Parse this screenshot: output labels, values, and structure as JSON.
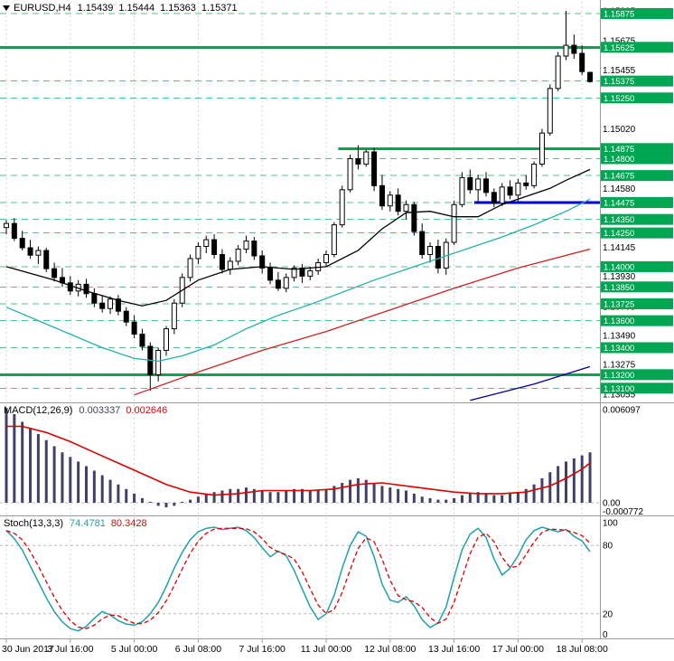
{
  "window": {
    "title": {
      "symbol": "EURUSD,H4",
      "open": "1.15439",
      "high": "1.15444",
      "low": "1.15363",
      "close": "1.15371"
    }
  },
  "colors": {
    "background": "#ffffff",
    "grid": "#d4d4d4",
    "candle_up_fill": "#ffffff",
    "candle_down_fill": "#000000",
    "candle_border": "#000000",
    "level_solid_green": "#00a651",
    "level_dashed_green": "#4cc388",
    "level_blue": "#0000e0",
    "label_box_bg": "#00a651",
    "label_box_text": "#ffffff",
    "axis_text": "#000000",
    "ma_black": "#000000",
    "ma_teal": "#20b2aa",
    "ma_red": "#cc2222",
    "ma_blue": "#000099",
    "macd_histogram": "#3f4166",
    "macd_signal": "#dd0000",
    "stoch_k": "#20a0a8",
    "stoch_d": "#dd0000",
    "separator": "#9a9a9a",
    "level_silver": "#bbbbbb"
  },
  "chart_data": [
    {
      "type": "candlestick",
      "title": "EURUSD,H4",
      "ylim": [
        1.13055,
        1.15895
      ],
      "y_axis_labels": [
        "1.15895",
        "1.15675",
        "1.15455",
        "1.15240",
        "1.15020",
        "1.14800",
        "1.14580",
        "1.14360",
        "1.14145",
        "1.13930",
        "1.13705",
        "1.13490",
        "1.13275",
        "1.13055"
      ],
      "time_axis": [
        {
          "bar": 0,
          "label": "30 Jun 2017"
        },
        {
          "bar": 8,
          "label": "3 Jul 16:00"
        },
        {
          "bar": 16,
          "label": "5 Jul 00:00"
        },
        {
          "bar": 24,
          "label": "6 Jul 08:00"
        },
        {
          "bar": 32,
          "label": "7 Jul 16:00"
        },
        {
          "bar": 40,
          "label": "11 Jul 00:00"
        },
        {
          "bar": 48,
          "label": "12 Jul 08:00"
        },
        {
          "bar": 56,
          "label": "13 Jul 16:00"
        },
        {
          "bar": 64,
          "label": "17 Jul 00:00"
        },
        {
          "bar": 72,
          "label": "18 Jul 08:00"
        }
      ],
      "levels": [
        {
          "label": "1.15875",
          "price": 1.15875,
          "style": "dashed"
        },
        {
          "label": "1.15625",
          "price": 1.15625,
          "style": "solid"
        },
        {
          "label": "1.15375",
          "price": 1.15375,
          "style": "dashed"
        },
        {
          "label": "1.15250",
          "price": 1.1525,
          "style": "dashed"
        },
        {
          "label": "1.14875",
          "price": 1.14875,
          "style": "solid",
          "from_bar": 42
        },
        {
          "label": "1.14800",
          "price": 1.148,
          "style": "dashed"
        },
        {
          "label": "1.14675",
          "price": 1.14675,
          "style": "dashed"
        },
        {
          "label": "1.14475",
          "price": 1.14475,
          "style": "blue-solid",
          "from_bar": 59,
          "also_dashed": true
        },
        {
          "label": "1.14350",
          "price": 1.1435,
          "style": "dashed"
        },
        {
          "label": "1.14250",
          "price": 1.1425,
          "style": "dashed"
        },
        {
          "label": "1.14000",
          "price": 1.14,
          "style": "dashed"
        },
        {
          "label": "1.13850",
          "price": 1.1385,
          "style": "dashed"
        },
        {
          "label": "1.13725",
          "price": 1.13725,
          "style": "dashed"
        },
        {
          "label": "1.13600",
          "price": 1.136,
          "style": "dashed"
        },
        {
          "label": "1.13400",
          "price": 1.134,
          "style": "dashed"
        },
        {
          "label": "1.13200",
          "price": 1.132,
          "style": "solid"
        },
        {
          "label": "1.13100",
          "price": 1.131,
          "style": "dashed"
        }
      ],
      "bars": [
        [
          1.1429,
          1.14345,
          1.1424,
          1.1432
        ],
        [
          1.1432,
          1.1436,
          1.1419,
          1.1421
        ],
        [
          1.1421,
          1.14265,
          1.1412,
          1.1414
        ],
        [
          1.1414,
          1.142,
          1.1406,
          1.14085
        ],
        [
          1.14085,
          1.1415,
          1.1402,
          1.1412
        ],
        [
          1.1412,
          1.1414,
          1.1396,
          1.13985
        ],
        [
          1.13985,
          1.1403,
          1.1389,
          1.1392
        ],
        [
          1.1392,
          1.1399,
          1.1385,
          1.1388
        ],
        [
          1.1388,
          1.1393,
          1.1379,
          1.1382
        ],
        [
          1.1382,
          1.139,
          1.1378,
          1.1387
        ],
        [
          1.1387,
          1.1391,
          1.1377,
          1.138
        ],
        [
          1.138,
          1.1384,
          1.137,
          1.1373
        ],
        [
          1.1373,
          1.1379,
          1.1366,
          1.1369
        ],
        [
          1.1369,
          1.1378,
          1.1365,
          1.1376
        ],
        [
          1.1376,
          1.1379,
          1.1364,
          1.1367
        ],
        [
          1.1367,
          1.137,
          1.1356,
          1.1359
        ],
        [
          1.1359,
          1.1364,
          1.1347,
          1.135
        ],
        [
          1.135,
          1.1354,
          1.1338,
          1.1341
        ],
        [
          1.1341,
          1.1344,
          1.1308,
          1.132
        ],
        [
          1.132,
          1.134,
          1.1315,
          1.1338
        ],
        [
          1.1338,
          1.1356,
          1.1334,
          1.1354
        ],
        [
          1.1354,
          1.1376,
          1.135,
          1.1373
        ],
        [
          1.1373,
          1.1395,
          1.137,
          1.1392
        ],
        [
          1.1392,
          1.1409,
          1.1389,
          1.1406
        ],
        [
          1.1406,
          1.1418,
          1.1402,
          1.1415
        ],
        [
          1.1415,
          1.1423,
          1.141,
          1.142
        ],
        [
          1.142,
          1.1424,
          1.1406,
          1.1409
        ],
        [
          1.1409,
          1.1413,
          1.1395,
          1.1398
        ],
        [
          1.1398,
          1.1407,
          1.1394,
          1.1404
        ],
        [
          1.1404,
          1.1416,
          1.1401,
          1.1413
        ],
        [
          1.1413,
          1.1423,
          1.141,
          1.1419
        ],
        [
          1.1419,
          1.1422,
          1.1405,
          1.1408
        ],
        [
          1.1408,
          1.1412,
          1.1395,
          1.1399
        ],
        [
          1.1399,
          1.1403,
          1.1387,
          1.139
        ],
        [
          1.139,
          1.1396,
          1.1382,
          1.1384
        ],
        [
          1.1384,
          1.1395,
          1.1381,
          1.1392
        ],
        [
          1.1392,
          1.1401,
          1.1389,
          1.1399
        ],
        [
          1.1399,
          1.1402,
          1.1388,
          1.1393
        ],
        [
          1.1393,
          1.14,
          1.139,
          1.1397
        ],
        [
          1.1397,
          1.1406,
          1.1394,
          1.1403
        ],
        [
          1.1403,
          1.1412,
          1.14,
          1.1409
        ],
        [
          1.1409,
          1.1433,
          1.1407,
          1.1431
        ],
        [
          1.1431,
          1.146,
          1.1429,
          1.1457
        ],
        [
          1.1457,
          1.1483,
          1.1455,
          1.148
        ],
        [
          1.148,
          1.149,
          1.1472,
          1.1476
        ],
        [
          1.1476,
          1.1487,
          1.1474,
          1.1485
        ],
        [
          1.1485,
          1.1488,
          1.1456,
          1.146
        ],
        [
          1.146,
          1.1468,
          1.1442,
          1.1445
        ],
        [
          1.1445,
          1.1456,
          1.1441,
          1.1453
        ],
        [
          1.1453,
          1.1458,
          1.1438,
          1.1441
        ],
        [
          1.1441,
          1.1449,
          1.1435,
          1.1446
        ],
        [
          1.1446,
          1.1448,
          1.1423,
          1.1426
        ],
        [
          1.1426,
          1.1432,
          1.1406,
          1.1409
        ],
        [
          1.1409,
          1.1418,
          1.1403,
          1.1415
        ],
        [
          1.1415,
          1.142,
          1.1395,
          1.1399
        ],
        [
          1.1399,
          1.1421,
          1.1394,
          1.1418
        ],
        [
          1.1418,
          1.1449,
          1.1416,
          1.1446
        ],
        [
          1.1446,
          1.147,
          1.1444,
          1.1466
        ],
        [
          1.1466,
          1.1472,
          1.1454,
          1.1457
        ],
        [
          1.1457,
          1.1468,
          1.1447,
          1.1465
        ],
        [
          1.1465,
          1.147,
          1.1452,
          1.1455
        ],
        [
          1.1455,
          1.1458,
          1.1444,
          1.1447
        ],
        [
          1.1447,
          1.1462,
          1.1445,
          1.1459
        ],
        [
          1.1459,
          1.1464,
          1.145,
          1.1453
        ],
        [
          1.1453,
          1.1465,
          1.1448,
          1.1462
        ],
        [
          1.1462,
          1.1468,
          1.1457,
          1.146
        ],
        [
          1.146,
          1.1478,
          1.1458,
          1.1476
        ],
        [
          1.1476,
          1.1502,
          1.1474,
          1.1499
        ],
        [
          1.1499,
          1.1535,
          1.1497,
          1.1532
        ],
        [
          1.1532,
          1.1559,
          1.153,
          1.1556
        ],
        [
          1.1556,
          1.15895,
          1.1553,
          1.1564
        ],
        [
          1.1564,
          1.1572,
          1.1554,
          1.1558
        ],
        [
          1.1558,
          1.1564,
          1.1542,
          1.15445
        ],
        [
          1.15439,
          1.15444,
          1.15363,
          1.15371
        ]
      ],
      "overlays": [
        {
          "name": "ma-black",
          "color_key": "ma_black",
          "points": [
            [
              0,
              1.14
            ],
            [
              6,
              1.139
            ],
            [
              10,
              1.1382
            ],
            [
              14,
              1.1375
            ],
            [
              17,
              1.1371
            ],
            [
              20,
              1.1375
            ],
            [
              24,
              1.139
            ],
            [
              28,
              1.1398
            ],
            [
              32,
              1.14
            ],
            [
              36,
              1.1398
            ],
            [
              40,
              1.14
            ],
            [
              44,
              1.1412
            ],
            [
              47,
              1.1428
            ],
            [
              50,
              1.144
            ],
            [
              53,
              1.1441
            ],
            [
              56,
              1.1437
            ],
            [
              59,
              1.1437
            ],
            [
              62,
              1.1446
            ],
            [
              65,
              1.1452
            ],
            [
              68,
              1.1458
            ],
            [
              70,
              1.1464
            ],
            [
              73,
              1.1472
            ]
          ]
        },
        {
          "name": "ma-teal",
          "color_key": "ma_teal",
          "points": [
            [
              0,
              1.137
            ],
            [
              4,
              1.136
            ],
            [
              8,
              1.135
            ],
            [
              12,
              1.134
            ],
            [
              16,
              1.1332
            ],
            [
              19,
              1.133
            ],
            [
              22,
              1.1334
            ],
            [
              26,
              1.1342
            ],
            [
              30,
              1.1354
            ],
            [
              34,
              1.1364
            ],
            [
              38,
              1.1372
            ],
            [
              42,
              1.1381
            ],
            [
              46,
              1.139
            ],
            [
              50,
              1.1398
            ],
            [
              54,
              1.1406
            ],
            [
              58,
              1.1414
            ],
            [
              62,
              1.1422
            ],
            [
              66,
              1.1431
            ],
            [
              70,
              1.1441
            ],
            [
              73,
              1.145
            ]
          ]
        },
        {
          "name": "ma-red",
          "color_key": "ma_red",
          "points": [
            [
              16,
              1.1305
            ],
            [
              24,
              1.1322
            ],
            [
              32,
              1.1338
            ],
            [
              40,
              1.1352
            ],
            [
              48,
              1.1368
            ],
            [
              56,
              1.1384
            ],
            [
              64,
              1.1399
            ],
            [
              73,
              1.1413
            ]
          ]
        },
        {
          "name": "ma-blue",
          "color_key": "ma_blue",
          "points": [
            [
              58,
              1.1301
            ],
            [
              66,
              1.1313
            ],
            [
              73,
              1.1326
            ]
          ]
        }
      ]
    },
    {
      "type": "macd",
      "label": "MACD(12,26,9)",
      "value_main": "0.003337",
      "value_signal": "0.002646",
      "y_axis_labels": [
        {
          "label": "0.006097",
          "value": 0.006097
        },
        {
          "label": "0.00",
          "value": 0
        },
        {
          "label": "-0.000772",
          "value": -0.000772
        }
      ],
      "histogram": [
        0.0062,
        0.0058,
        0.0053,
        0.0049,
        0.0045,
        0.0041,
        0.0037,
        0.0033,
        0.003,
        0.0027,
        0.0024,
        0.0021,
        0.0018,
        0.0015,
        0.0012,
        0.0009,
        0.0006,
        0.0003,
        0.0,
        -0.0002,
        -0.0003,
        -0.0002,
        0.0,
        0.0002,
        0.0004,
        0.0006,
        0.0007,
        0.0008,
        0.0009,
        0.0009,
        0.001,
        0.0009,
        0.0008,
        0.0007,
        0.0007,
        0.0008,
        0.0009,
        0.0009,
        0.0008,
        0.0008,
        0.0009,
        0.0011,
        0.0013,
        0.0015,
        0.0016,
        0.0015,
        0.0013,
        0.0011,
        0.001,
        0.0009,
        0.0008,
        0.0006,
        0.0004,
        0.0003,
        0.0002,
        0.0002,
        0.0003,
        0.0005,
        0.0006,
        0.0007,
        0.0006,
        0.0005,
        0.0005,
        0.0006,
        0.0007,
        0.0009,
        0.0012,
        0.0016,
        0.002,
        0.0024,
        0.0027,
        0.0029,
        0.0031,
        0.0033
      ],
      "signal_points": [
        [
          0,
          0.005
        ],
        [
          2,
          0.005
        ],
        [
          5,
          0.0046
        ],
        [
          8,
          0.004
        ],
        [
          11,
          0.0033
        ],
        [
          14,
          0.0026
        ],
        [
          17,
          0.0019
        ],
        [
          20,
          0.0012
        ],
        [
          23,
          0.0007
        ],
        [
          26,
          0.0005
        ],
        [
          29,
          0.0006
        ],
        [
          32,
          0.0008
        ],
        [
          35,
          0.0008
        ],
        [
          38,
          0.0008
        ],
        [
          41,
          0.0009
        ],
        [
          44,
          0.0012
        ],
        [
          47,
          0.0013
        ],
        [
          50,
          0.0011
        ],
        [
          53,
          0.0009
        ],
        [
          56,
          0.0007
        ],
        [
          59,
          0.0006
        ],
        [
          62,
          0.0006
        ],
        [
          65,
          0.0007
        ],
        [
          68,
          0.0011
        ],
        [
          70,
          0.0016
        ],
        [
          71,
          0.0019
        ],
        [
          72,
          0.0022
        ],
        [
          73,
          0.0026
        ]
      ]
    },
    {
      "type": "stochastic",
      "label": "Stoch(13,3,3)",
      "value_k": "74.4781",
      "value_d": "80.3428",
      "y_axis_labels": [
        {
          "label": "100",
          "value": 100
        },
        {
          "label": "80",
          "value": 80
        },
        {
          "label": "20",
          "value": 20
        },
        {
          "label": "0",
          "value": 0
        }
      ],
      "dashed_levels": [
        80,
        20
      ],
      "k": [
        93,
        86,
        76,
        62,
        48,
        34,
        22,
        13,
        7,
        5,
        9,
        16,
        22,
        19,
        14,
        11,
        10,
        13,
        20,
        30,
        44,
        60,
        74,
        85,
        92,
        95,
        96,
        94,
        95,
        96,
        93,
        87,
        78,
        70,
        75,
        71,
        58,
        42,
        26,
        15,
        20,
        36,
        60,
        80,
        92,
        88,
        70,
        46,
        32,
        30,
        35,
        27,
        15,
        8,
        12,
        26,
        52,
        76,
        90,
        95,
        87,
        68,
        54,
        60,
        71,
        85,
        93,
        96,
        94,
        92,
        94,
        88,
        84,
        74.5
      ]
    }
  ]
}
